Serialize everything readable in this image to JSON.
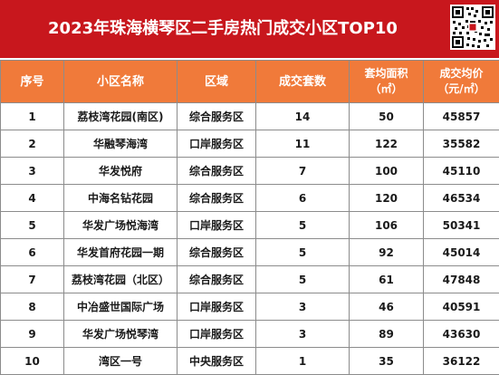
{
  "header": {
    "title": "2023年珠海横琴区二手房热门成交小区TOP10",
    "qr_icon": "qr-code-icon"
  },
  "columns": [
    {
      "key": "rank",
      "label": "序号",
      "sub": ""
    },
    {
      "key": "name",
      "label": "小区名称",
      "sub": ""
    },
    {
      "key": "zone",
      "label": "区域",
      "sub": ""
    },
    {
      "key": "deals",
      "label": "成交套数",
      "sub": ""
    },
    {
      "key": "area",
      "label": "套均面积",
      "sub": "（㎡）"
    },
    {
      "key": "price",
      "label": "成交均价",
      "sub": "（元/㎡）"
    }
  ],
  "rows": [
    {
      "rank": "1",
      "name": "荔枝湾花园(南区)",
      "zone": "综合服务区",
      "deals": "14",
      "area": "50",
      "price": "45857"
    },
    {
      "rank": "2",
      "name": "华融琴海湾",
      "zone": "口岸服务区",
      "deals": "11",
      "area": "122",
      "price": "35582"
    },
    {
      "rank": "3",
      "name": "华发悦府",
      "zone": "综合服务区",
      "deals": "7",
      "area": "100",
      "price": "45110"
    },
    {
      "rank": "4",
      "name": "中海名钻花园",
      "zone": "综合服务区",
      "deals": "6",
      "area": "120",
      "price": "46534"
    },
    {
      "rank": "5",
      "name": "华发广场悦海湾",
      "zone": "口岸服务区",
      "deals": "5",
      "area": "106",
      "price": "50341"
    },
    {
      "rank": "6",
      "name": "华发首府花园一期",
      "zone": "综合服务区",
      "deals": "5",
      "area": "92",
      "price": "45014"
    },
    {
      "rank": "7",
      "name": "荔枝湾花园（北区）",
      "zone": "综合服务区",
      "deals": "5",
      "area": "61",
      "price": "47848"
    },
    {
      "rank": "8",
      "name": "中冶盛世国际广场",
      "zone": "口岸服务区",
      "deals": "3",
      "area": "46",
      "price": "40591"
    },
    {
      "rank": "9",
      "name": "华发广场悦琴湾",
      "zone": "口岸服务区",
      "deals": "3",
      "area": "89",
      "price": "43630"
    },
    {
      "rank": "10",
      "name": "湾区一号",
      "zone": "中央服务区",
      "deals": "1",
      "area": "35",
      "price": "36122"
    }
  ],
  "colors": {
    "title_bg": "#c8171d",
    "header_bg": "#f07a3a",
    "header_text": "#ffffff",
    "cell_text": "#1a1a1a",
    "grid": "#8c8c8c"
  }
}
